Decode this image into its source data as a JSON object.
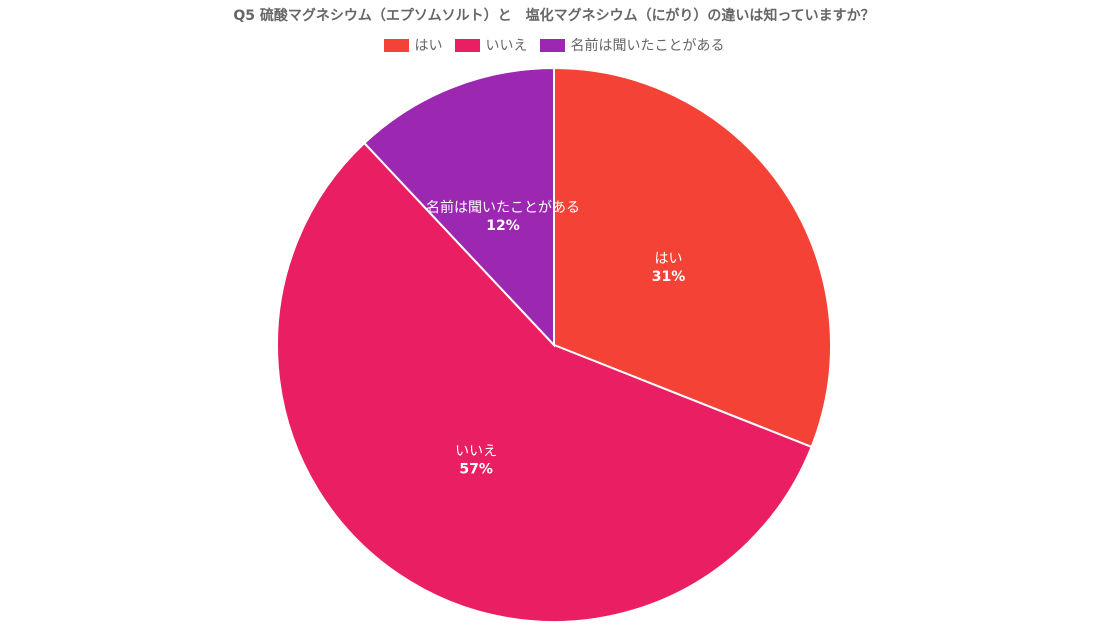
{
  "chart_data": {
    "type": "pie",
    "title": "Q5 硫酸マグネシウム（エプソムソルト）と　塩化マグネシウム（にがり）の違いは知っていますか？",
    "legend_position": "top",
    "categories": [
      "はい",
      "いいえ",
      "名前は聞いたことがある"
    ],
    "values": [
      31,
      57,
      12
    ],
    "value_labels": [
      "31%",
      "57%",
      "12%"
    ],
    "colors": [
      "#f44336",
      "#e91e63",
      "#9c27b0"
    ]
  }
}
